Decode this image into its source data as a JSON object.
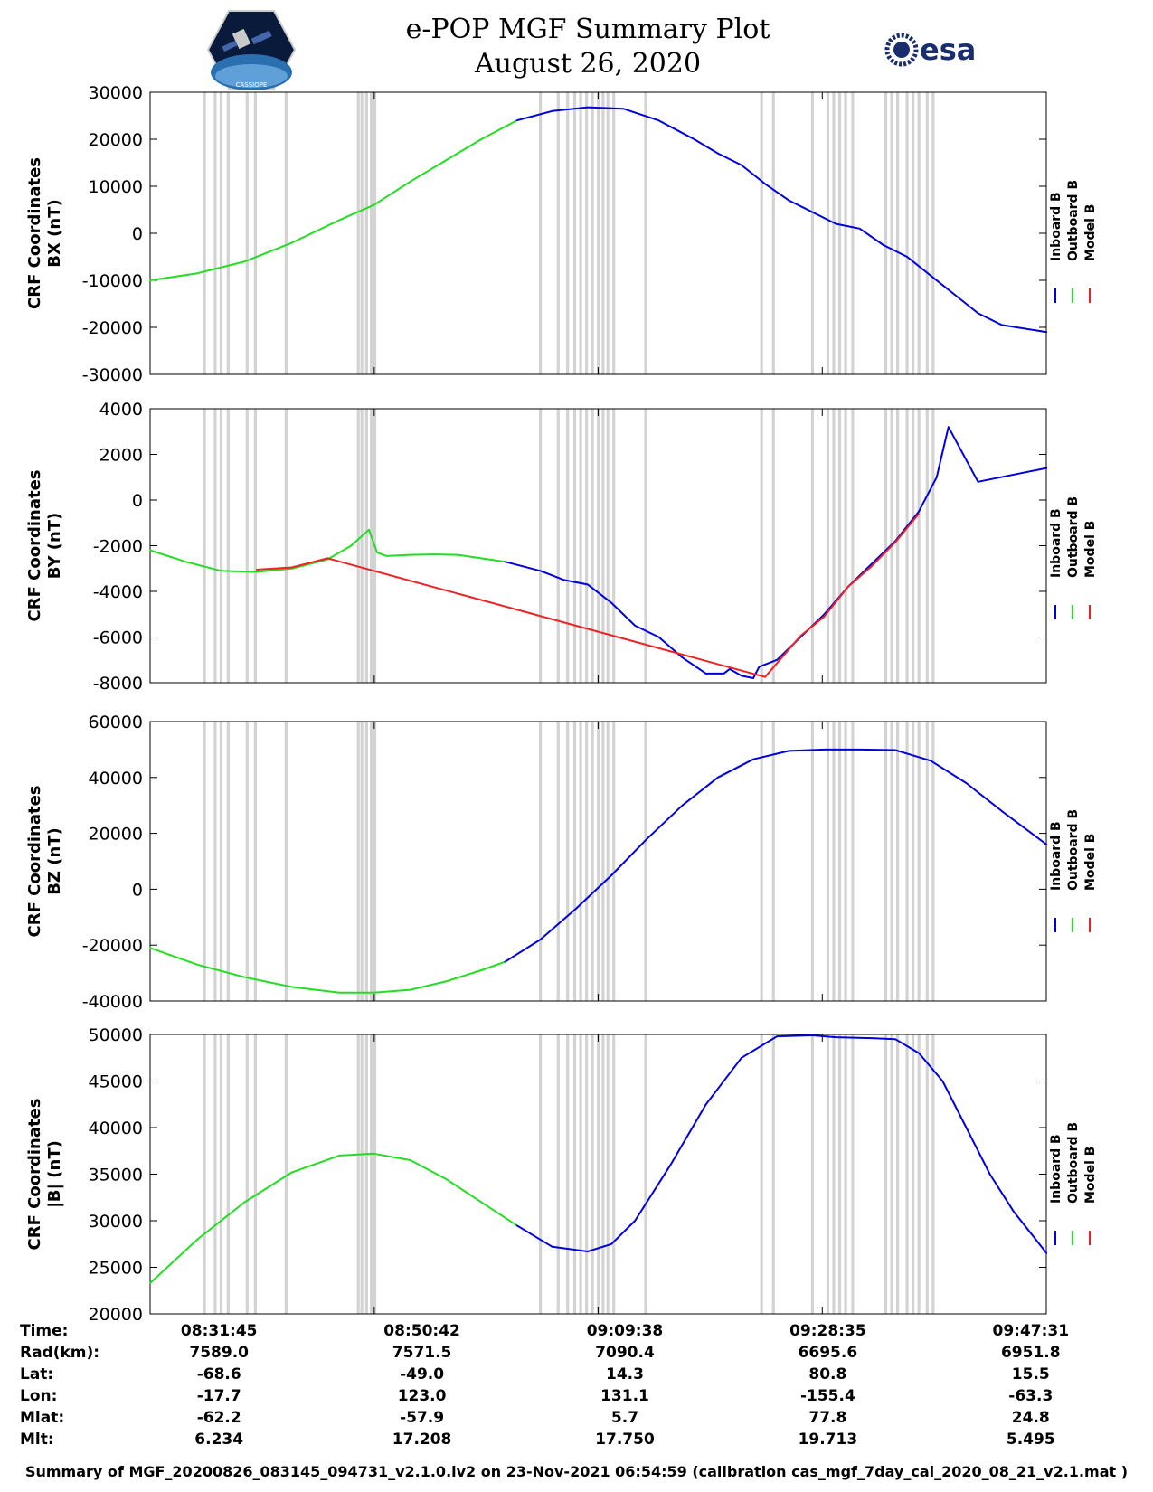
{
  "header": {
    "title_line1": "e-POP MGF Summary Plot",
    "title_line2": "August 26, 2020",
    "logo_left_text": "CASSIOPE",
    "logo_right_text": "esa"
  },
  "colors": {
    "inboard": "#0000dd",
    "outboard": "#22dd22",
    "model": "#ee2222",
    "shading": "#d3d3d3"
  },
  "chart_data": [
    {
      "type": "line",
      "ylabel_line1": "CRF Coordinates",
      "ylabel_line2": "BX (nT)",
      "ylim": [
        -30000,
        30000
      ],
      "yticks": [
        "30000",
        "20000",
        "10000",
        "0",
        "-10000",
        "-20000",
        "-30000"
      ],
      "ytick_values": [
        30000,
        20000,
        10000,
        0,
        -10000,
        -20000,
        -30000
      ],
      "legend": [
        "Inboard B",
        "Outboard B",
        "Model B"
      ],
      "x_minutes": [
        0,
        4,
        8,
        12,
        16,
        18.9,
        22,
        25,
        28,
        31,
        34,
        37,
        40,
        43,
        46,
        48,
        50,
        52,
        54,
        56,
        58,
        60,
        62,
        64,
        66,
        68,
        70,
        72,
        75.8
      ],
      "series": [
        {
          "name": "Outboard B",
          "x_minutes": [
            0,
            4,
            8,
            12,
            16,
            18.9,
            22,
            25,
            28,
            31
          ],
          "values": [
            -10000,
            -8500,
            -6000,
            -2000,
            2800,
            6000,
            11000,
            15500,
            20000,
            24000
          ]
        },
        {
          "name": "Inboard B",
          "x_minutes": [
            31,
            34,
            37,
            40,
            43,
            46,
            48,
            50,
            52,
            54,
            56,
            58,
            60,
            62,
            64,
            66,
            68,
            70,
            72,
            75.8
          ],
          "values": [
            24000,
            26000,
            26800,
            26500,
            24000,
            20000,
            17000,
            14500,
            10500,
            7000,
            4500,
            2000,
            1000,
            -2500,
            -5000,
            -9000,
            -13000,
            -17000,
            -19500,
            -21000
          ]
        }
      ]
    },
    {
      "type": "line",
      "ylabel_line1": "CRF Coordinates",
      "ylabel_line2": "BY (nT)",
      "ylim": [
        -8000,
        4000
      ],
      "yticks": [
        "4000",
        "2000",
        "0",
        "-2000",
        "-4000",
        "-6000",
        "-8000"
      ],
      "ytick_values": [
        4000,
        2000,
        0,
        -2000,
        -4000,
        -6000,
        -8000
      ],
      "legend": [
        "Inboard B",
        "Outboard B",
        "Model B"
      ],
      "series": [
        {
          "name": "Outboard B",
          "x_minutes": [
            0,
            3,
            6,
            9,
            12,
            15,
            17,
            18.5,
            19.2,
            20,
            22,
            24,
            26,
            28,
            30
          ],
          "values": [
            -2200,
            -2700,
            -3100,
            -3150,
            -3000,
            -2600,
            -2000,
            -1300,
            -2300,
            -2450,
            -2400,
            -2380,
            -2400,
            -2550,
            -2700
          ]
        },
        {
          "name": "Inboard B",
          "x_minutes": [
            30,
            33,
            35,
            37,
            39,
            41,
            43,
            45,
            47,
            48.5,
            49,
            50,
            51,
            51.5,
            53,
            55,
            57,
            59,
            61,
            63,
            65,
            66.5,
            67.5,
            70,
            75.8
          ],
          "values": [
            -2700,
            -3100,
            -3500,
            -3700,
            -4500,
            -5500,
            -6000,
            -6900,
            -7600,
            -7600,
            -7400,
            -7700,
            -7800,
            -7300,
            -7000,
            -6000,
            -5000,
            -3800,
            -2800,
            -1800,
            -500,
            1000,
            3200,
            800,
            1400
          ]
        },
        {
          "name": "Model B",
          "x_minutes": [
            9,
            12,
            15,
            52,
            55,
            57,
            59,
            61,
            63,
            65
          ],
          "values": [
            -3050,
            -2950,
            -2550,
            -7750,
            -5950,
            -5100,
            -3800,
            -2900,
            -1850,
            -600
          ]
        }
      ]
    },
    {
      "type": "line",
      "ylabel_line1": "CRF Coordinates",
      "ylabel_line2": "BZ (nT)",
      "ylim": [
        -40000,
        60000
      ],
      "yticks": [
        "60000",
        "40000",
        "20000",
        "0",
        "-20000",
        "-40000"
      ],
      "ytick_values": [
        60000,
        40000,
        20000,
        0,
        -20000,
        -40000
      ],
      "legend": [
        "Inboard B",
        "Outboard B",
        "Model B"
      ],
      "series": [
        {
          "name": "Outboard B",
          "x_minutes": [
            0,
            4,
            8,
            12,
            16,
            18.9,
            22,
            25,
            28,
            30
          ],
          "values": [
            -21000,
            -27000,
            -31500,
            -35000,
            -37000,
            -37000,
            -36000,
            -33000,
            -29000,
            -26000
          ]
        },
        {
          "name": "Inboard B",
          "x_minutes": [
            30,
            33,
            36,
            39,
            42,
            45,
            48,
            51,
            54,
            57,
            60,
            63,
            66,
            69,
            72,
            75.8
          ],
          "values": [
            -26000,
            -18000,
            -7000,
            5000,
            18000,
            30000,
            40000,
            46500,
            49500,
            50000,
            50000,
            49800,
            46000,
            38000,
            28000,
            16000
          ]
        }
      ]
    },
    {
      "type": "line",
      "ylabel_line1": "CRF Coordinates",
      "ylabel_line2": "|B| (nT)",
      "ylim": [
        20000,
        50000
      ],
      "yticks": [
        "50000",
        "45000",
        "40000",
        "35000",
        "30000",
        "25000",
        "20000"
      ],
      "ytick_values": [
        50000,
        45000,
        40000,
        35000,
        30000,
        25000,
        20000
      ],
      "legend": [
        "Inboard B",
        "Outboard B",
        "Model B"
      ],
      "series": [
        {
          "name": "Outboard B",
          "x_minutes": [
            0,
            4,
            8,
            12,
            16,
            18.9,
            22,
            25,
            28,
            31
          ],
          "values": [
            23300,
            28000,
            32000,
            35200,
            37000,
            37200,
            36500,
            34500,
            32000,
            29500
          ]
        },
        {
          "name": "Inboard B",
          "x_minutes": [
            31,
            34,
            37,
            39,
            41,
            44,
            47,
            50,
            53,
            56,
            58,
            61,
            63,
            65,
            67,
            69,
            71,
            73,
            75.8
          ],
          "values": [
            29500,
            27200,
            26700,
            27500,
            30000,
            36000,
            42500,
            47500,
            49800,
            49900,
            49700,
            49600,
            49500,
            48000,
            45000,
            40000,
            35000,
            31000,
            26500
          ]
        }
      ]
    }
  ],
  "xaxis": {
    "range_minutes": [
      0,
      75.77
    ],
    "tick_minutes": [
      0,
      18.95,
      37.88,
      56.83,
      75.77
    ]
  },
  "shading_minutes": [
    4.6,
    5.5,
    6.0,
    6.6,
    8.2,
    8.9,
    11.5,
    17.6,
    17.9,
    18.3,
    18.7,
    19.0,
    33.0,
    34.5,
    35.3,
    35.9,
    36.4,
    36.9,
    37.4,
    37.9,
    38.3,
    38.7,
    39.2,
    41.9,
    51.7,
    52.7,
    56.0,
    57.3,
    57.8,
    58.3,
    58.8,
    59.4,
    62.2,
    62.7,
    63.2,
    64.0,
    64.5,
    65.0,
    65.7,
    66.2
  ],
  "info": {
    "rows": [
      {
        "label": "Time:",
        "values": [
          "08:31:45",
          "08:50:42",
          "09:09:38",
          "09:28:35",
          "09:47:31"
        ]
      },
      {
        "label": "Rad(km):",
        "values": [
          "7589.0",
          "7571.5",
          "7090.4",
          "6695.6",
          "6951.8"
        ]
      },
      {
        "label": "Lat:",
        "values": [
          "-68.6",
          "-49.0",
          "14.3",
          "80.8",
          "15.5"
        ]
      },
      {
        "label": "Lon:",
        "values": [
          "-17.7",
          "123.0",
          "131.1",
          "-155.4",
          "-63.3"
        ]
      },
      {
        "label": "Mlat:",
        "values": [
          "-62.2",
          "-57.9",
          "5.7",
          "77.8",
          "24.8"
        ]
      },
      {
        "label": "Mlt:",
        "values": [
          "6.234",
          "17.208",
          "17.750",
          "19.713",
          "5.495"
        ]
      }
    ]
  },
  "footer": "Summary of MGF_20200826_083145_094731_v2.1.0.lv2 on 23-Nov-2021 06:54:59 (calibration cas_mgf_7day_cal_2020_08_21_v2.1.mat )"
}
